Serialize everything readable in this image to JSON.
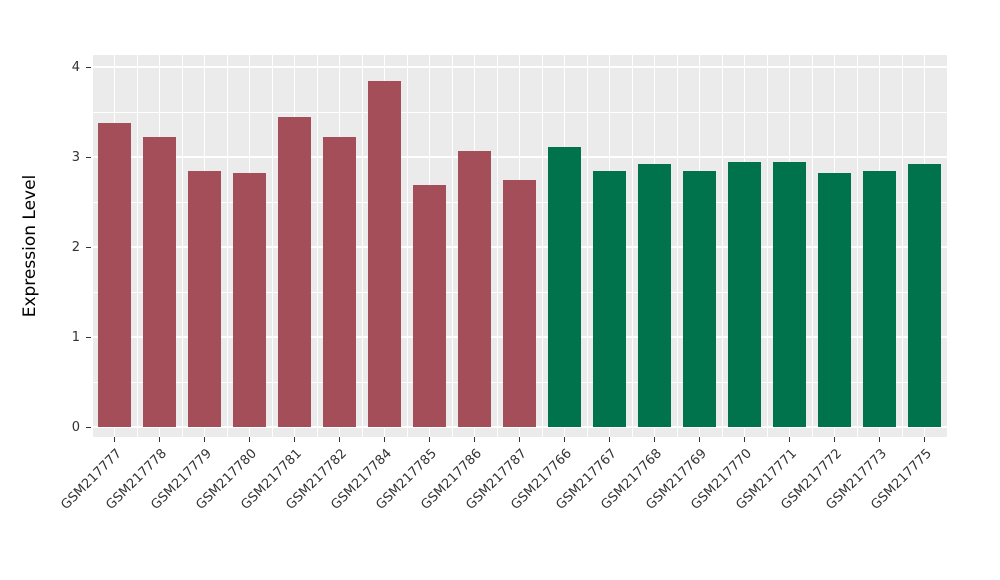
{
  "chart_data": {
    "type": "bar",
    "title": "",
    "xlabel": "",
    "ylabel": "Expression Level",
    "ylim": [
      0,
      4
    ],
    "yticks": [
      0,
      1,
      2,
      3,
      4
    ],
    "grid": "on",
    "legend": "none",
    "categories": [
      "GSM217777",
      "GSM217778",
      "GSM217779",
      "GSM217780",
      "GSM217781",
      "GSM217782",
      "GSM217784",
      "GSM217785",
      "GSM217786",
      "GSM217787",
      "GSM217766",
      "GSM217767",
      "GSM217768",
      "GSM217769",
      "GSM217770",
      "GSM217771",
      "GSM217772",
      "GSM217773",
      "GSM217775"
    ],
    "values": [
      3.38,
      3.22,
      2.85,
      2.82,
      3.44,
      3.22,
      3.85,
      2.69,
      3.07,
      2.74,
      3.11,
      2.85,
      2.92,
      2.85,
      2.95,
      2.95,
      2.82,
      2.84,
      2.92
    ],
    "bar_colors": [
      "#A34E58",
      "#A34E58",
      "#A34E58",
      "#A34E58",
      "#A34E58",
      "#A34E58",
      "#A34E58",
      "#A34E58",
      "#A34E58",
      "#A34E58",
      "#00734C",
      "#00734C",
      "#00734C",
      "#00734C",
      "#00734C",
      "#00734C",
      "#00734C",
      "#00734C",
      "#00734C"
    ],
    "colors": {
      "group_red": "#A34E58",
      "group_green": "#00734C",
      "panel_background": "#EBEBEB",
      "gridline": "#FFFFFF",
      "axis_text": "#333333"
    }
  }
}
